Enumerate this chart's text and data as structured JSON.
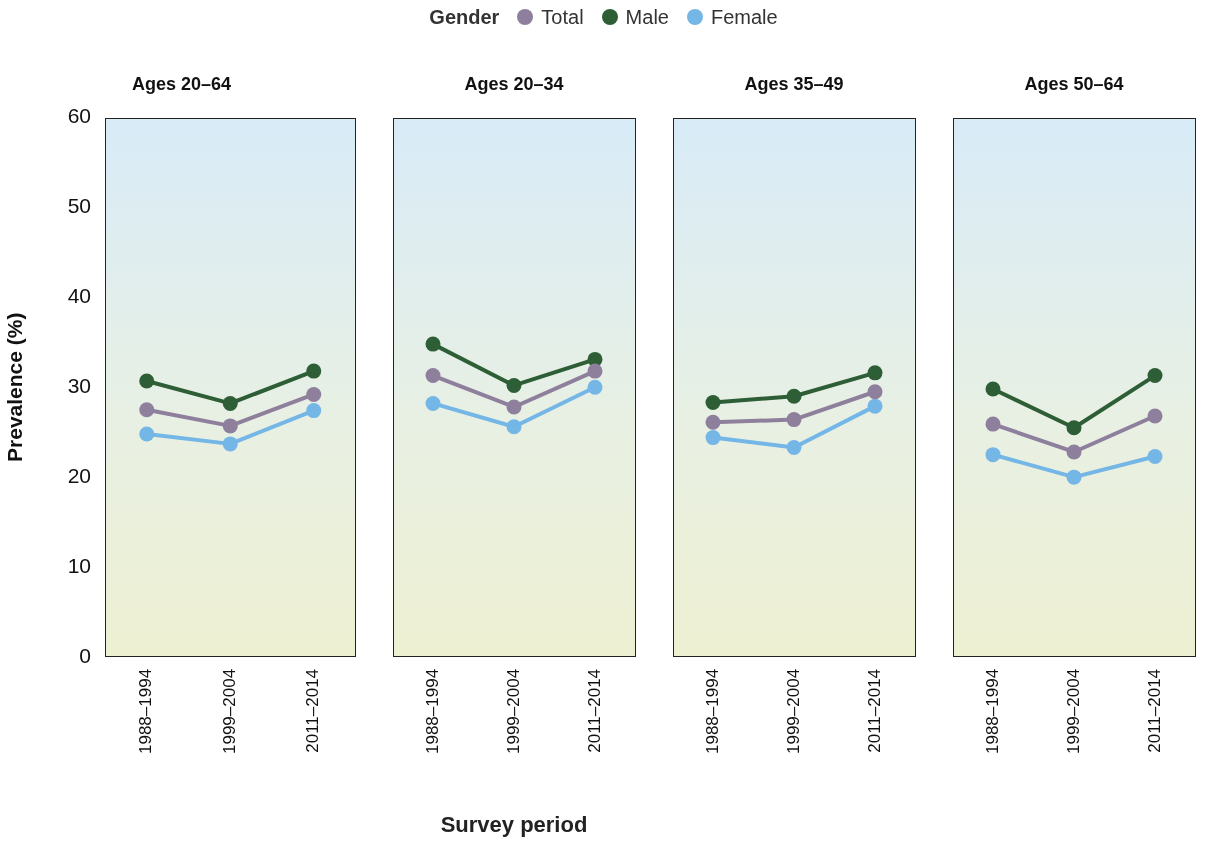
{
  "chart_data": [
    {
      "type": "line",
      "title": "Ages 20–64",
      "ylabel": "Prevalence (%)",
      "legend": "top",
      "legend_title": "Gender",
      "marker": "circle",
      "categories": [
        "1988–1994",
        "1999–2004",
        "2011–2014"
      ],
      "ylim": [
        0,
        60
      ],
      "yticks": [
        0,
        10,
        20,
        30,
        40,
        50,
        60
      ],
      "series": [
        {
          "name": "Total",
          "color": "#8e809c",
          "values": [
            27.5,
            25.7,
            29.2
          ]
        },
        {
          "name": "Male",
          "color": "#2e5e36",
          "values": [
            30.7,
            28.2,
            31.8
          ]
        },
        {
          "name": "Female",
          "color": "#74b6e6",
          "values": [
            24.8,
            23.7,
            27.4
          ]
        }
      ]
    },
    {
      "type": "line",
      "title": "Ages 20–34",
      "xlabel": "Survey period",
      "tick_labels": "x",
      "marker": "circle",
      "categories": [
        "1988–1994",
        "1999–2004",
        "2011–2014"
      ],
      "ylim": [
        0,
        60
      ],
      "yticks": [
        0,
        10,
        20,
        30,
        40,
        50,
        60
      ],
      "series": [
        {
          "color": "#8e809c",
          "values": [
            31.3,
            27.8,
            31.8
          ]
        },
        {
          "color": "#2e5e36",
          "values": [
            34.8,
            30.2,
            33.1
          ]
        },
        {
          "color": "#74b6e6",
          "values": [
            28.2,
            25.6,
            30.0
          ]
        }
      ]
    },
    {
      "type": "line",
      "title": "Ages 35–49",
      "tick_labels": "x",
      "marker": "circle",
      "categories": [
        "1988–1994",
        "1999–2004",
        "2011–2014"
      ],
      "ylim": [
        0,
        60
      ],
      "yticks": [
        0,
        10,
        20,
        30,
        40,
        50,
        60
      ],
      "series": [
        {
          "color": "#8e809c",
          "values": [
            26.1,
            26.4,
            29.5
          ]
        },
        {
          "color": "#2e5e36",
          "values": [
            28.3,
            29.0,
            31.6
          ]
        },
        {
          "color": "#74b6e6",
          "values": [
            24.4,
            23.3,
            27.9
          ]
        }
      ]
    },
    {
      "type": "line",
      "title": "Ages 50–64",
      "tick_labels": "x",
      "marker": "circle",
      "categories": [
        "1988–1994",
        "1999–2004",
        "2011–2014"
      ],
      "ylim": [
        0,
        60
      ],
      "yticks": [
        0,
        10,
        20,
        30,
        40,
        50,
        60
      ],
      "series": [
        {
          "color": "#8e809c",
          "values": [
            25.9,
            22.8,
            26.8
          ]
        },
        {
          "color": "#2e5e36",
          "values": [
            29.8,
            25.5,
            31.3
          ]
        },
        {
          "color": "#74b6e6",
          "values": [
            22.5,
            20.0,
            22.3
          ]
        }
      ]
    }
  ]
}
